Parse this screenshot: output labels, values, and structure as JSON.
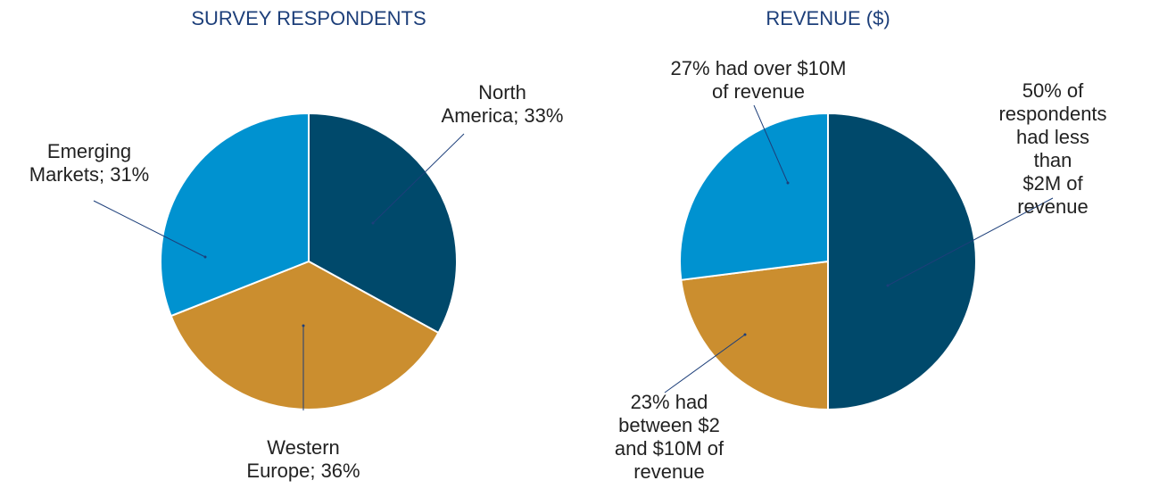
{
  "chart_data": [
    {
      "type": "pie",
      "title": "SURVEY RESPONDENTS",
      "values": [
        33,
        36,
        31
      ],
      "value_labels": [
        "North\nAmerica; 33%",
        "Western\nEurope; 36%",
        "Emerging\nMarkets; 31%"
      ],
      "colors": [
        "#00496b",
        "#cb8e2f",
        "#0092d0"
      ]
    },
    {
      "type": "pie",
      "title": "REVENUE ($)",
      "values": [
        50,
        23,
        27
      ],
      "value_labels": [
        "50% of\nrespondents\nhad less than\n$2M of revenue",
        "23% had\nbetween $2\nand $10M of\nrevenue",
        "27% had over $10M\nof revenue"
      ],
      "colors": [
        "#00496b",
        "#cb8e2f",
        "#0092d0"
      ]
    }
  ]
}
